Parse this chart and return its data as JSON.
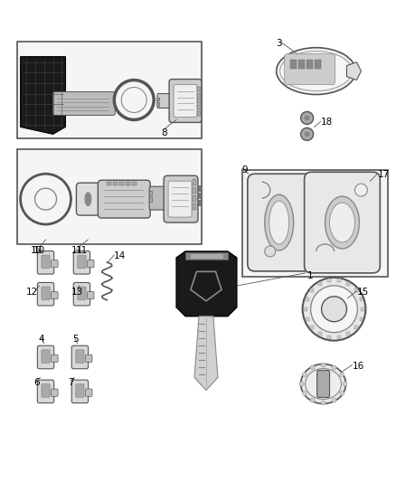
{
  "background_color": "#ffffff",
  "fig_w": 4.38,
  "fig_h": 5.33,
  "dpi": 100
}
